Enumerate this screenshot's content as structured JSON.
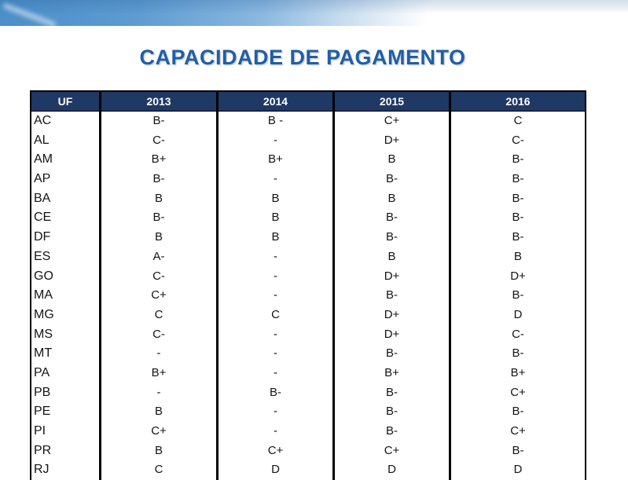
{
  "title": "CAPACIDADE DE PAGAMENTO",
  "colors": {
    "title_text": "#1f5ea9",
    "table_header_bg": "#1f3864",
    "table_header_text": "#ffffff",
    "table_border": "#000000",
    "banner_blue": "#4b8ec9"
  },
  "table": {
    "columns": [
      "UF",
      "2013",
      "2014",
      "2015",
      "2016"
    ],
    "rows": [
      {
        "uf": "AC",
        "values": [
          "B-",
          "B -",
          "C+",
          "C"
        ]
      },
      {
        "uf": "AL",
        "values": [
          "C-",
          "-",
          "D+",
          "C-"
        ]
      },
      {
        "uf": "AM",
        "values": [
          "B+",
          "B+",
          "B",
          "B-"
        ]
      },
      {
        "uf": "AP",
        "values": [
          "B-",
          "-",
          "B-",
          "B-"
        ]
      },
      {
        "uf": "BA",
        "values": [
          "B",
          "B",
          "B",
          "B-"
        ]
      },
      {
        "uf": "CE",
        "values": [
          "B-",
          "B",
          "B-",
          "B-"
        ]
      },
      {
        "uf": "DF",
        "values": [
          "B",
          "B",
          "B-",
          "B-"
        ]
      },
      {
        "uf": "ES",
        "values": [
          "A-",
          "-",
          "B",
          "B"
        ]
      },
      {
        "uf": "GO",
        "values": [
          "C-",
          "-",
          "D+",
          "D+"
        ]
      },
      {
        "uf": "MA",
        "values": [
          "C+",
          "-",
          "B-",
          "B-"
        ]
      },
      {
        "uf": "MG",
        "values": [
          "C",
          "C",
          "D+",
          "D"
        ]
      },
      {
        "uf": "MS",
        "values": [
          "C-",
          "-",
          "D+",
          "C-"
        ]
      },
      {
        "uf": "MT",
        "values": [
          "-",
          "-",
          "B-",
          "B-"
        ]
      },
      {
        "uf": "PA",
        "values": [
          "B+",
          "-",
          "B+",
          "B+"
        ]
      },
      {
        "uf": "PB",
        "values": [
          "-",
          "B-",
          "B-",
          "C+"
        ]
      },
      {
        "uf": "PE",
        "values": [
          "B",
          "-",
          "B-",
          "B-"
        ]
      },
      {
        "uf": "PI",
        "values": [
          "C+",
          "-",
          "B-",
          "C+"
        ]
      },
      {
        "uf": "PR",
        "values": [
          "B",
          "C+",
          "C+",
          "B-"
        ]
      },
      {
        "uf": "RJ",
        "values": [
          "C",
          "D",
          "D",
          "D"
        ]
      }
    ]
  }
}
